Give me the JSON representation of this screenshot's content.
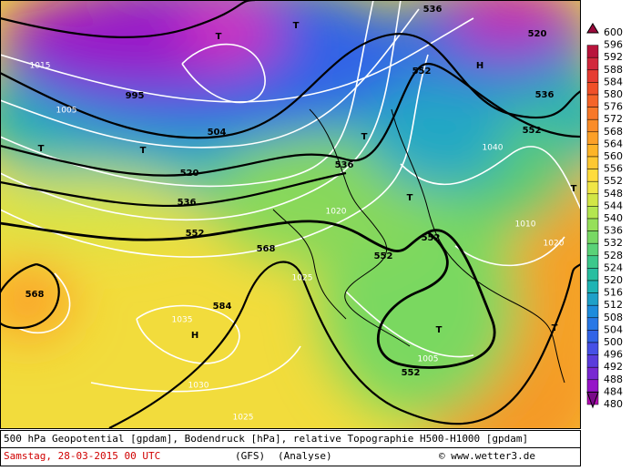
{
  "caption": {
    "title": "500 hPa Geopotential [gpdam], Bodendruck [hPa], relative Topographie H500-H1000 [gpdam]",
    "date": "Samstag, 28-03-2015  00 UTC",
    "model": "(GFS)",
    "run": "(Analyse)",
    "source": "© www.wetter3.de"
  },
  "color_scale": [
    {
      "value": 600,
      "color": "#9b0a3c"
    },
    {
      "value": 596,
      "color": "#b8143c"
    },
    {
      "value": 592,
      "color": "#d2283c"
    },
    {
      "value": 588,
      "color": "#e63c32"
    },
    {
      "value": 584,
      "color": "#f05028"
    },
    {
      "value": 580,
      "color": "#f56428"
    },
    {
      "value": 576,
      "color": "#f87828"
    },
    {
      "value": 572,
      "color": "#fa8c28"
    },
    {
      "value": 568,
      "color": "#fca028"
    },
    {
      "value": 564,
      "color": "#fdb428"
    },
    {
      "value": 560,
      "color": "#fec832"
    },
    {
      "value": 556,
      "color": "#ffdc3c"
    },
    {
      "value": 552,
      "color": "#f0e646"
    },
    {
      "value": 548,
      "color": "#d2e646"
    },
    {
      "value": 544,
      "color": "#b4e650"
    },
    {
      "value": 540,
      "color": "#96e05a"
    },
    {
      "value": 536,
      "color": "#78d864"
    },
    {
      "value": 532,
      "color": "#5ad278"
    },
    {
      "value": 528,
      "color": "#3cc88c"
    },
    {
      "value": 524,
      "color": "#28bea0"
    },
    {
      "value": 520,
      "color": "#1eb4b4"
    },
    {
      "value": 516,
      "color": "#1ea0c8"
    },
    {
      "value": 512,
      "color": "#1e8cdc"
    },
    {
      "value": 508,
      "color": "#2878e6"
    },
    {
      "value": 504,
      "color": "#3264e6"
    },
    {
      "value": 500,
      "color": "#4650e6"
    },
    {
      "value": 496,
      "color": "#5a3cdc"
    },
    {
      "value": 492,
      "color": "#7828d2"
    },
    {
      "value": 488,
      "color": "#9614c8"
    },
    {
      "value": 484,
      "color": "#b40ab4"
    },
    {
      "value": 480,
      "color": "#7a0a8a"
    }
  ],
  "map_labels": [
    "536",
    "520",
    "536",
    "552",
    "552",
    "H",
    "T",
    "T",
    "T",
    "T",
    "504",
    "520",
    "536",
    "552",
    "568",
    "552",
    "552",
    "552",
    "T",
    "T",
    "T",
    "T",
    "T",
    "568",
    "584",
    "H",
    "1030",
    "1025",
    "1035",
    "1005",
    "1040",
    "1015",
    "1005",
    "995",
    "536",
    "1020",
    "1025",
    "1010",
    "1020"
  ]
}
